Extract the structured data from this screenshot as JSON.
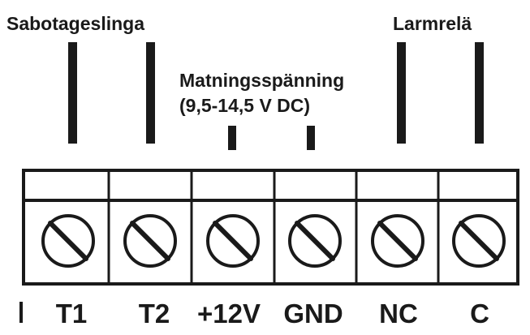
{
  "group_labels": {
    "tamper_loop": "Sabotageslinga",
    "supply_voltage": "Matningsspänning",
    "supply_voltage_range": "(9,5-14,5 V DC)",
    "alarm_relay": "Larmrelä"
  },
  "terminals": [
    {
      "id": "t1",
      "label": "T1"
    },
    {
      "id": "t2",
      "label": "T2"
    },
    {
      "id": "plus12v",
      "label": "+12V"
    },
    {
      "id": "gnd",
      "label": "GND"
    },
    {
      "id": "nc",
      "label": "NC"
    },
    {
      "id": "c",
      "label": "C"
    }
  ],
  "colors": {
    "ink": "#1a1a1a",
    "background": "#ffffff"
  }
}
